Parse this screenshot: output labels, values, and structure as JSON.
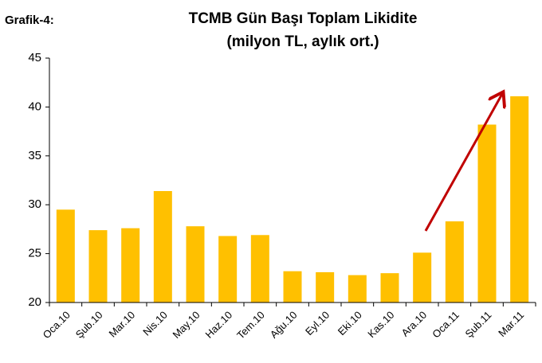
{
  "chart_data": {
    "type": "bar",
    "label": "Grafik-4:",
    "title": "TCMB Gün Başı Toplam Likidite",
    "subtitle": "(milyon TL, aylık ort.)",
    "categories": [
      "Oca.10",
      "Şub.10",
      "Mar.10",
      "Nis.10",
      "May.10",
      "Haz.10",
      "Tem.10",
      "Ağu.10",
      "Eyl.10",
      "Eki.10",
      "Kas.10",
      "Ara.10",
      "Oca.11",
      "Şub.11",
      "Mar.11"
    ],
    "values": [
      29.5,
      27.4,
      27.6,
      31.4,
      27.8,
      26.8,
      26.9,
      23.2,
      23.1,
      22.8,
      23.0,
      25.1,
      28.3,
      38.2,
      41.1
    ],
    "color": "#ffc000",
    "ylim": [
      20,
      45
    ],
    "yticks": [
      20,
      25,
      30,
      35,
      40,
      45
    ],
    "grid": false
  }
}
